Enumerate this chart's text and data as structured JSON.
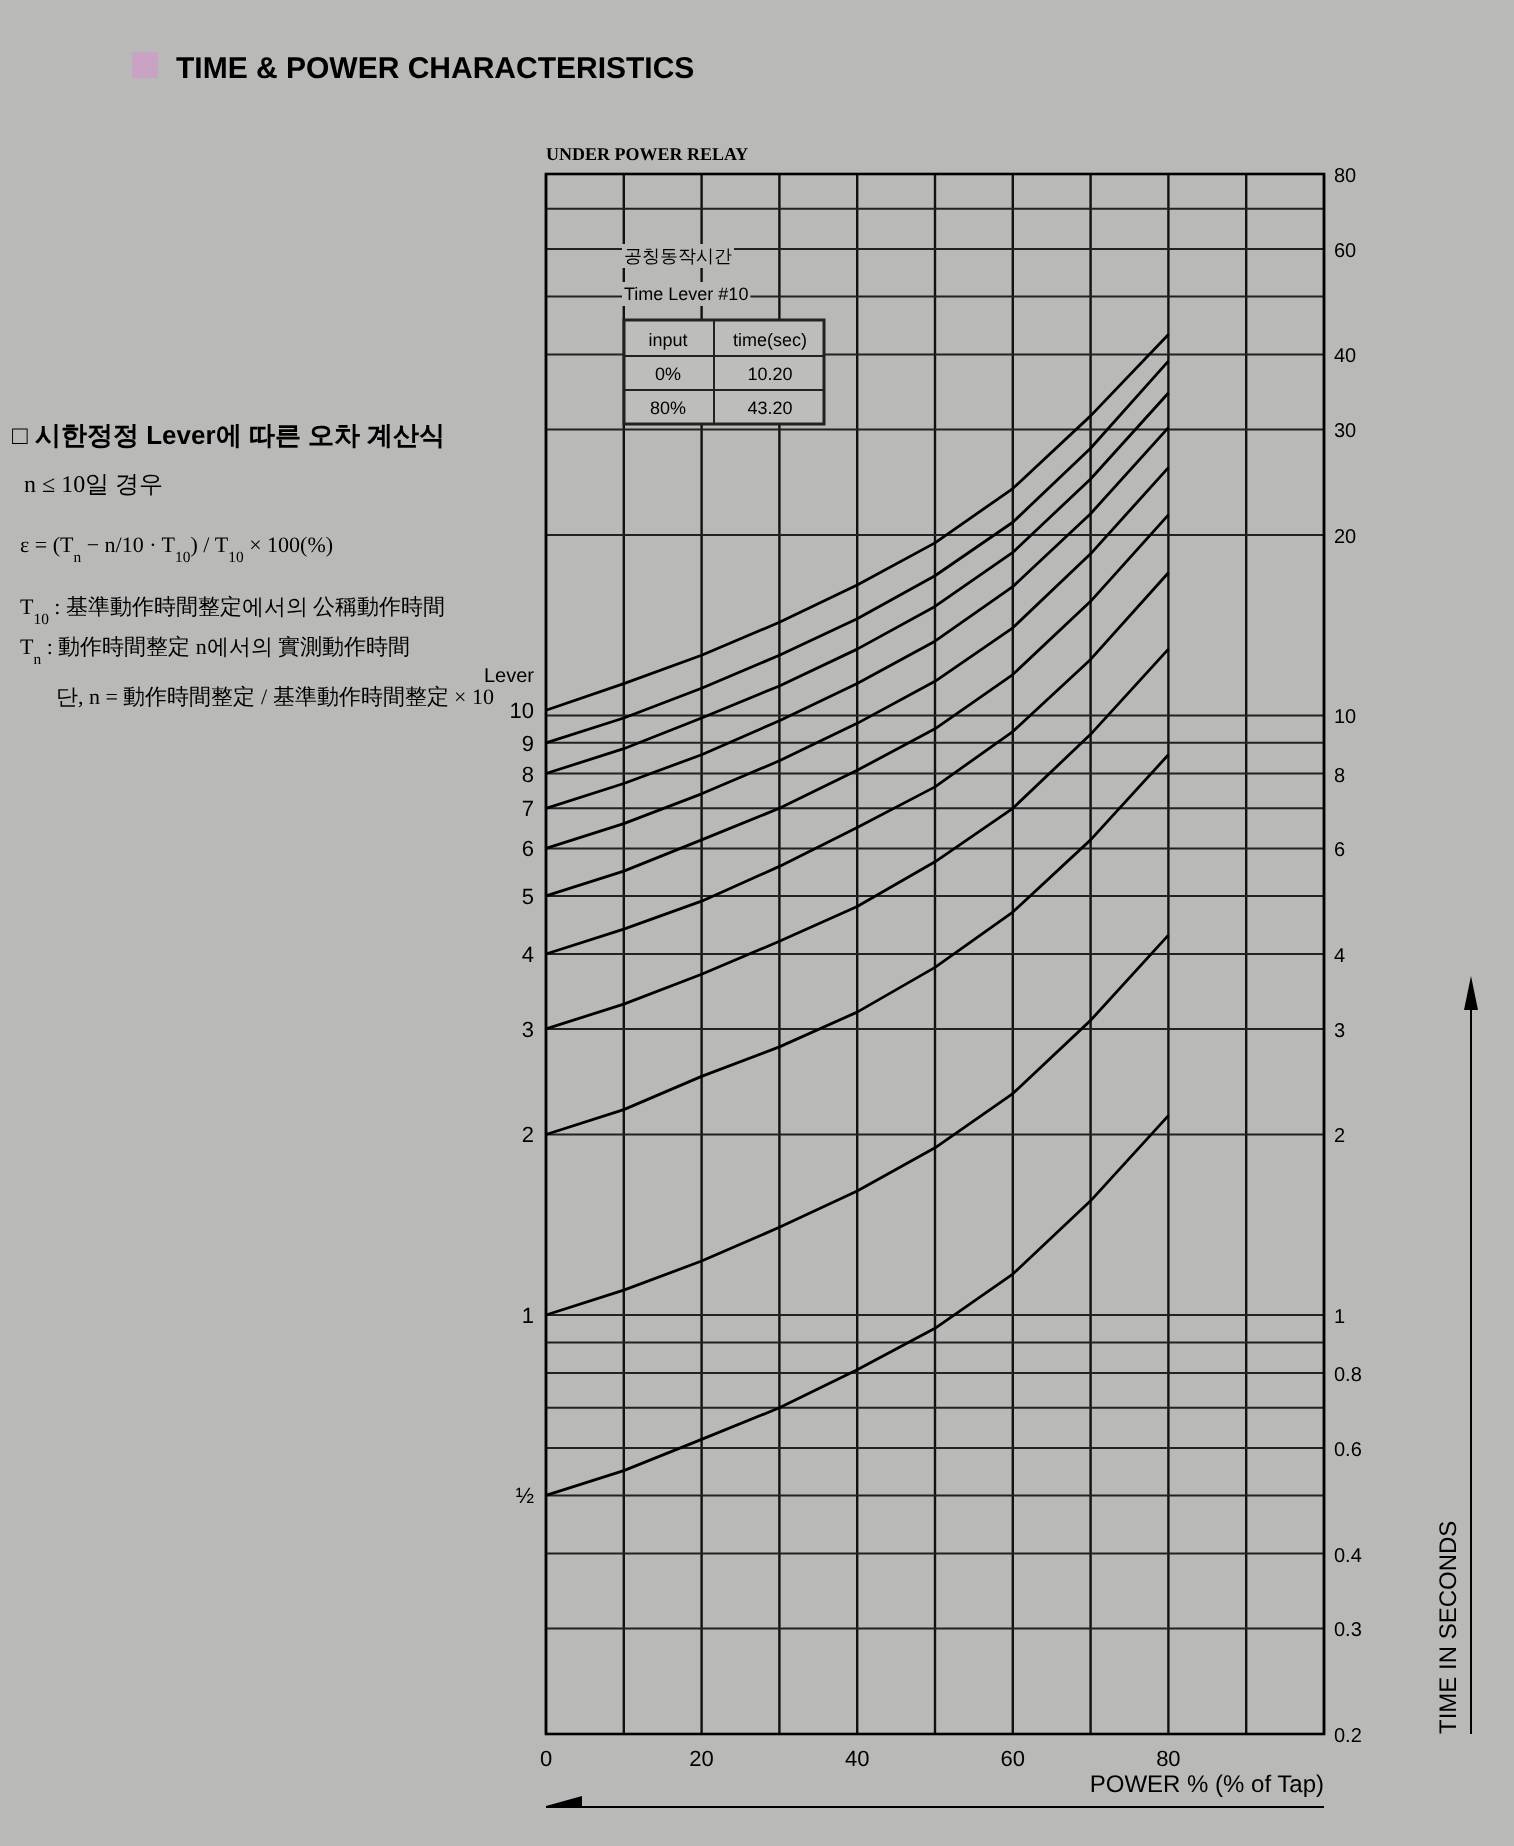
{
  "chart_data": {
    "type": "line",
    "title": "TIME & POWER CHARACTERISTICS",
    "subtitle": "UNDER POWER RELAY",
    "xlabel": "POWER % (% of Tap)",
    "ylabel": "TIME IN SECONDS",
    "legend_title": "Lever",
    "log": "y",
    "grid": true,
    "legend": false,
    "xlim": [
      0,
      100
    ],
    "ylim": [
      0.2,
      80
    ],
    "xticks": [
      0,
      {
        "value": 10,
        "label": null
      },
      20,
      {
        "value": 30,
        "label": null
      },
      40,
      {
        "value": 50,
        "label": null
      },
      60,
      {
        "value": 70,
        "label": null
      },
      80,
      {
        "value": 90,
        "label": null
      },
      {
        "value": 100,
        "label": null
      }
    ],
    "yticks": [
      {
        "value": 0.2,
        "label": "0.2"
      },
      {
        "value": 0.3,
        "label": "0.3"
      },
      {
        "value": 0.4,
        "label": "0.4"
      },
      {
        "value": 0.5,
        "label": null
      },
      {
        "value": 0.6,
        "label": "0.6"
      },
      {
        "value": 0.7,
        "label": null
      },
      {
        "value": 0.8,
        "label": "0.8"
      },
      {
        "value": 0.9,
        "label": null
      },
      1,
      2,
      3,
      4,
      {
        "value": 5,
        "label": null
      },
      6,
      {
        "value": 7,
        "label": null
      },
      8,
      {
        "value": 9,
        "label": null
      },
      10,
      20,
      30,
      40,
      {
        "value": 50,
        "label": null
      },
      60,
      {
        "value": 70,
        "label": null
      },
      80
    ],
    "x": [
      0,
      10,
      20,
      30,
      40,
      50,
      60,
      70,
      80
    ],
    "series": [
      {
        "name": "10",
        "color": "#000000",
        "values": [
          10.2,
          11.3,
          12.6,
          14.3,
          16.5,
          19.4,
          23.9,
          31.6,
          43.2
        ]
      },
      {
        "name": "9",
        "color": "#000000",
        "values": [
          9.0,
          9.9,
          11.1,
          12.6,
          14.5,
          17.1,
          21.0,
          27.9,
          39.0
        ]
      },
      {
        "name": "8",
        "color": "#000000",
        "values": [
          8.0,
          8.8,
          9.9,
          11.2,
          12.9,
          15.2,
          18.7,
          24.8,
          34.5
        ]
      },
      {
        "name": "7",
        "color": "#000000",
        "values": [
          7.0,
          7.7,
          8.6,
          9.8,
          11.3,
          13.3,
          16.4,
          21.7,
          30.2
        ]
      },
      {
        "name": "6",
        "color": "#000000",
        "values": [
          6.0,
          6.6,
          7.4,
          8.4,
          9.7,
          11.4,
          14.0,
          18.6,
          25.9
        ]
      },
      {
        "name": "5",
        "color": "#000000",
        "values": [
          5.0,
          5.5,
          6.2,
          7.0,
          8.1,
          9.5,
          11.7,
          15.5,
          21.6
        ]
      },
      {
        "name": "4",
        "color": "#000000",
        "values": [
          4.0,
          4.4,
          4.9,
          5.6,
          6.5,
          7.6,
          9.4,
          12.4,
          17.3
        ]
      },
      {
        "name": "3",
        "color": "#000000",
        "values": [
          3.0,
          3.3,
          3.7,
          4.2,
          4.8,
          5.7,
          7.0,
          9.3,
          12.9
        ]
      },
      {
        "name": "2",
        "color": "#000000",
        "values": [
          2.0,
          2.2,
          2.5,
          2.8,
          3.2,
          3.8,
          4.7,
          6.2,
          8.6
        ]
      },
      {
        "name": "1",
        "color": "#000000",
        "values": [
          1.0,
          1.1,
          1.23,
          1.4,
          1.61,
          1.9,
          2.34,
          3.1,
          4.3
        ]
      },
      {
        "name": "½",
        "color": "#000000",
        "values": [
          0.5,
          0.55,
          0.62,
          0.7,
          0.81,
          0.95,
          1.17,
          1.55,
          2.15
        ]
      }
    ],
    "annotations": [
      "공칭동작시간",
      "Time Lever #10",
      "input",
      "time(sec)",
      "0%",
      "10.20",
      "80%",
      "43.20",
      "□ 시한정정 Lever에 따른 오차 계산식",
      "n ≤ 10일 경우",
      "ε = (T$_{n}$ − n/10 · T$_{10}$) / T$_{10}$ × 100(%)",
      "T$_{10}$ : 基準動作時間整定에서의 公稱動作時間",
      "T$_{n}$ : 動作時間整定 n에서의 實測動作時間",
      "단, n = 動作時間整定 / 基準動作時間整定 × 10"
    ]
  }
}
